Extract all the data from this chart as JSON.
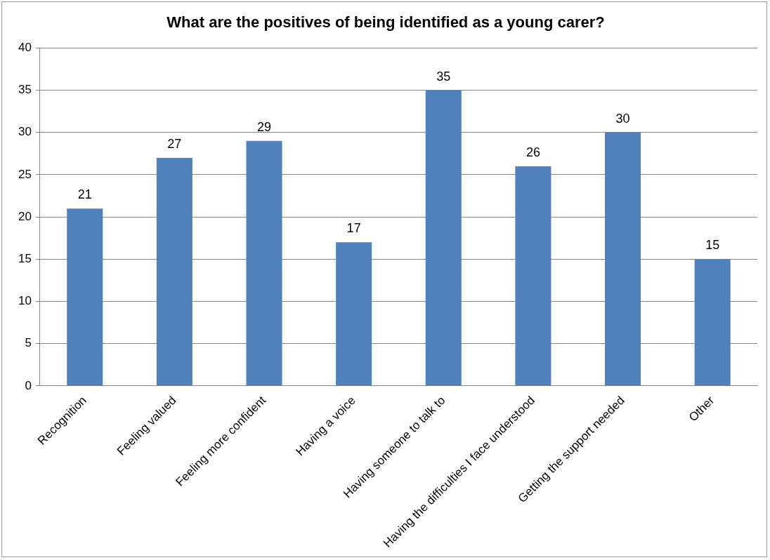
{
  "chart_data": {
    "type": "bar",
    "title": "What are the positives of being identified as a young carer?",
    "categories": [
      "Recognition",
      "Feeling valued",
      "Feeling more confident",
      "Having a voice",
      "Having someone to talk to",
      "Having the difficulties I face understood",
      "Getting the support needed",
      "Other"
    ],
    "values": [
      21,
      27,
      29,
      17,
      35,
      26,
      30,
      15
    ],
    "color": "#4f81bd",
    "ylim": [
      0,
      40
    ],
    "yticks": [
      0,
      5,
      10,
      15,
      20,
      25,
      30,
      35,
      40
    ],
    "grid": "y",
    "data_labels": true,
    "legend": false
  }
}
